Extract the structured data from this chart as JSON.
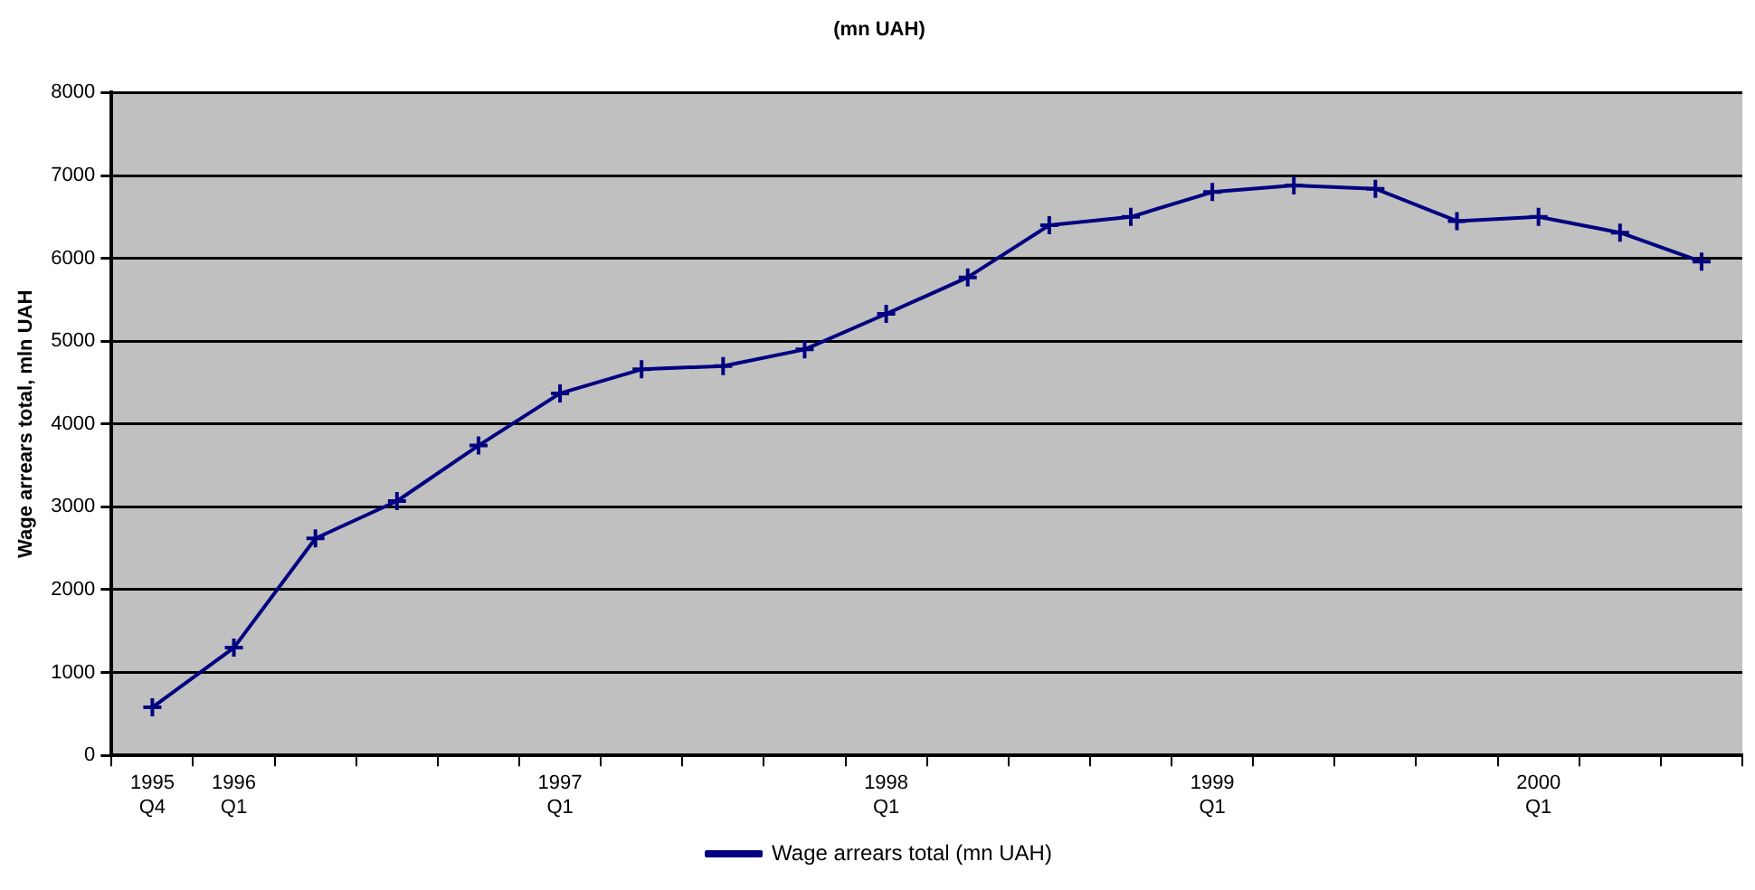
{
  "chart_data": {
    "type": "line",
    "title": "(mn UAH)",
    "ylabel": "Wage arrears total, mln UAH",
    "categories": [
      "1995\nQ4",
      "1996\nQ1",
      null,
      null,
      null,
      "1997\nQ1",
      null,
      null,
      null,
      "1998\nQ1",
      null,
      null,
      null,
      "1999\nQ1",
      null,
      null,
      null,
      "2000\nQ1",
      null,
      null
    ],
    "series": [
      {
        "name": "Wage arrears total (mn UAH)",
        "color": "#000080",
        "values": [
          580,
          1300,
          2620,
          3070,
          3740,
          4370,
          4660,
          4700,
          4900,
          5330,
          5770,
          6400,
          6500,
          6800,
          6880,
          6840,
          6450,
          6500,
          6310,
          5960
        ]
      }
    ],
    "ylim": [
      0,
      8000
    ],
    "yticks": [
      0,
      1000,
      2000,
      3000,
      4000,
      5000,
      6000,
      7000,
      8000
    ],
    "grid": "y",
    "legend": "bottom",
    "marker": "cross",
    "line_style": "solid"
  }
}
